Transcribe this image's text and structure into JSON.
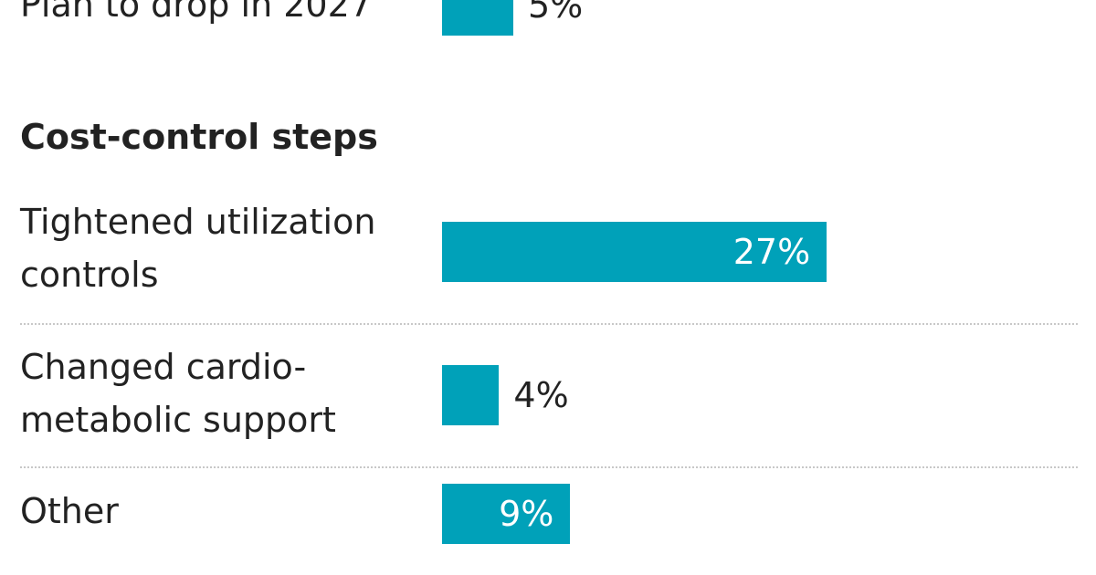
{
  "chart_data": [
    {
      "type": "bar",
      "orientation": "horizontal",
      "color": "#00a1b9",
      "categories": [
        "Plan to drop in 2027"
      ],
      "values": [
        5
      ],
      "value_labels": [
        "5%"
      ]
    },
    {
      "type": "bar",
      "orientation": "horizontal",
      "color": "#00a1b9",
      "title": "Cost-control steps",
      "categories": [
        "Tightened utilization controls",
        "Changed cardio-metabolic support",
        "Other"
      ],
      "values": [
        27,
        4,
        9
      ],
      "value_labels": [
        "27%",
        "4%",
        "9%"
      ]
    }
  ]
}
